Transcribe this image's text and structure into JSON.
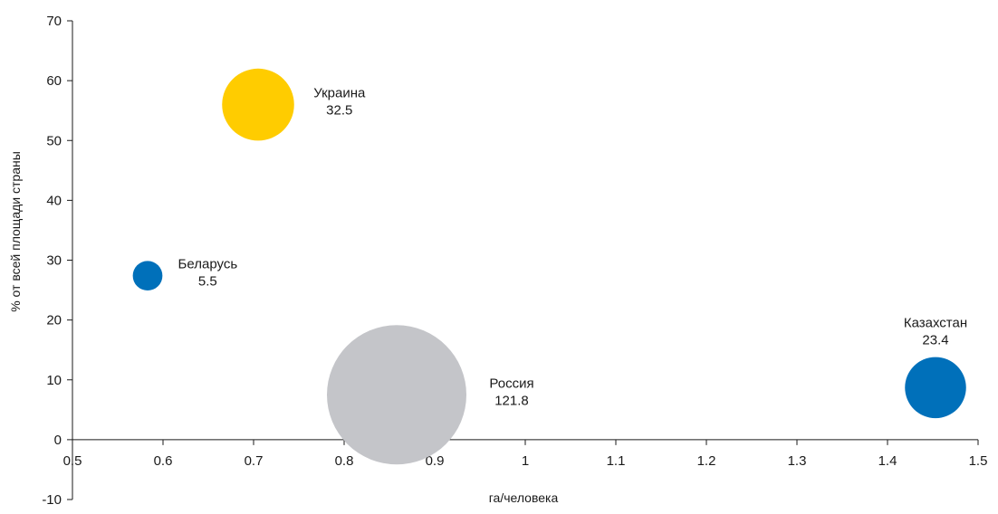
{
  "chart_data": {
    "type": "scatter",
    "title": "",
    "xlabel": "га/человека",
    "ylabel": "% от всей площади страны",
    "xlim": [
      0.5,
      1.5
    ],
    "ylim": [
      -10,
      70
    ],
    "x_ticks": [
      "0.5",
      "0.6",
      "0.7",
      "0.8",
      "0.9",
      "1",
      "1.1",
      "1.2",
      "1.3",
      "1.4",
      "1.5"
    ],
    "y_ticks": [
      "-10",
      "0",
      "10",
      "20",
      "30",
      "40",
      "50",
      "60",
      "70"
    ],
    "grid": false,
    "legend": "none",
    "series": [
      {
        "country": "Украина",
        "x": 0.705,
        "y": 56.0,
        "size": 32.5,
        "size_label": "32.5",
        "color": "#FFCC00"
      },
      {
        "country": "Беларусь",
        "x": 0.583,
        "y": 27.4,
        "size": 5.5,
        "size_label": "5.5",
        "color": "#0070BA"
      },
      {
        "country": "Россия",
        "x": 0.858,
        "y": 7.5,
        "size": 121.8,
        "size_label": "121.8",
        "color": "#C4C5C9"
      },
      {
        "country": "Казахстан",
        "x": 1.453,
        "y": 8.7,
        "size": 23.4,
        "size_label": "23.4",
        "color": "#0070BA"
      }
    ]
  }
}
